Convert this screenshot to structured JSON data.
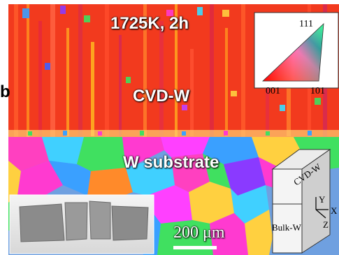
{
  "panel": {
    "label": "b",
    "condition": "1725K, 2h",
    "upper_layer_label": "CVD-W",
    "lower_layer_label": "W substrate",
    "scale_bar": "200 μm"
  },
  "ipf_legend": {
    "top_label": "111",
    "bottom_left_label": "001",
    "bottom_right_label": "101"
  },
  "schematic": {
    "top_label": "CVD-W",
    "bottom_label": "Bulk-W",
    "axis_y": "Y",
    "axis_x": "X",
    "axis_z": "Z"
  },
  "colors": {
    "cvd_red": "#f23a1e",
    "substrate_mix": "#6fa0e0",
    "sample_photo_gray": "#8b8b8b"
  }
}
